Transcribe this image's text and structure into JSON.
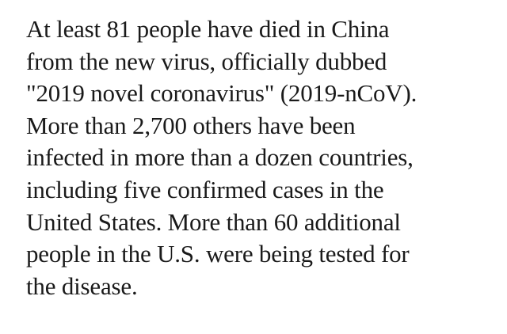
{
  "article": {
    "lines": [
      "At least 81 people have died in China",
      "from the new virus, officially dubbed",
      "\"2019 novel coronavirus\" (2019-nCoV).",
      "More than 2,700 others have been",
      "infected in more than a dozen countries,",
      "including five confirmed cases in the",
      "United States. More than 60 additional",
      "people in the U.S. were being tested for",
      "the disease."
    ]
  }
}
